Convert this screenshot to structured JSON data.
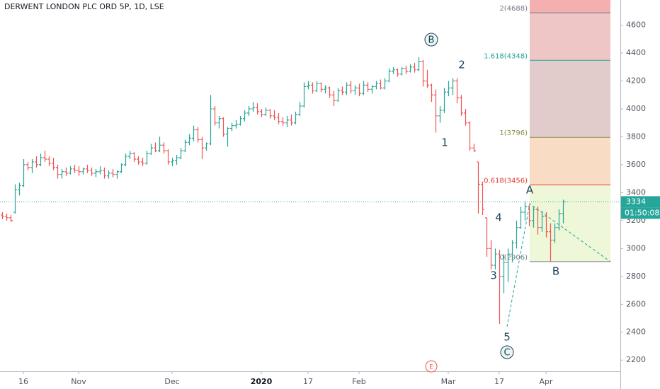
{
  "chart_data": {
    "type": "ohlc",
    "title": "DERWENT LONDON PLC ORD 5P, 1D, LSE",
    "up_color": "#26a69a",
    "down_color": "#ef5350",
    "xlim": [
      -0.5,
      145.5
    ],
    "xticks": [
      {
        "value": 5,
        "label": "16"
      },
      {
        "value": 18,
        "label": "Nov"
      },
      {
        "value": 40,
        "label": "Dec"
      },
      {
        "value": 61,
        "label": "2020"
      },
      {
        "value": 72,
        "label": "17"
      },
      {
        "value": 84,
        "label": "Feb"
      },
      {
        "value": 105,
        "label": "Mar"
      },
      {
        "value": 117,
        "label": "17"
      },
      {
        "value": 128,
        "label": "Apr"
      }
    ],
    "ylim": [
      2120,
      4780
    ],
    "yticks": [
      2200,
      2400,
      2600,
      2800,
      3000,
      3200,
      3400,
      3600,
      3800,
      4000,
      4200,
      4400,
      4600
    ],
    "grid": false,
    "last_price": 3334,
    "countdown": "01:50:08",
    "fib_levels": [
      {
        "label": "0(2906)",
        "value": 2906,
        "color": "#787b86",
        "fill": "#eef7d8"
      },
      {
        "label": "0.618(3456)",
        "value": 3456,
        "color": "#e53935",
        "fill": "#f8dcc4"
      },
      {
        "label": "1(3796)",
        "value": 3796,
        "color": "#8d8d48",
        "fill": "#e2cccb"
      },
      {
        "label": "1.618(4348)",
        "value": 4348,
        "color": "#26a69a",
        "fill": "#efc6c6"
      },
      {
        "label": "2(4688)",
        "value": 4688,
        "color": "#787b86",
        "fill": "#f4b0b0"
      }
    ],
    "wave_labels": [
      "B",
      "2",
      "1",
      "4",
      "3",
      "5",
      "C",
      "A",
      "B"
    ],
    "event_marker": "E",
    "ohlc": [
      [
        3240,
        3260,
        3210,
        3230
      ],
      [
        3230,
        3250,
        3200,
        3220
      ],
      [
        3220,
        3240,
        3190,
        3200
      ],
      [
        3260,
        3460,
        3250,
        3420
      ],
      [
        3420,
        3470,
        3380,
        3450
      ],
      [
        3450,
        3640,
        3440,
        3600
      ],
      [
        3600,
        3620,
        3560,
        3580
      ],
      [
        3580,
        3640,
        3540,
        3620
      ],
      [
        3620,
        3660,
        3580,
        3600
      ],
      [
        3600,
        3680,
        3590,
        3650
      ],
      [
        3650,
        3700,
        3620,
        3640
      ],
      [
        3640,
        3660,
        3590,
        3610
      ],
      [
        3610,
        3650,
        3560,
        3580
      ],
      [
        3580,
        3600,
        3500,
        3530
      ],
      [
        3530,
        3570,
        3500,
        3550
      ],
      [
        3550,
        3580,
        3520,
        3540
      ],
      [
        3540,
        3590,
        3530,
        3570
      ],
      [
        3570,
        3600,
        3540,
        3560
      ],
      [
        3560,
        3590,
        3520,
        3550
      ],
      [
        3550,
        3580,
        3530,
        3570
      ],
      [
        3570,
        3600,
        3540,
        3560
      ],
      [
        3560,
        3580,
        3520,
        3540
      ],
      [
        3540,
        3570,
        3510,
        3550
      ],
      [
        3550,
        3590,
        3530,
        3560
      ],
      [
        3560,
        3580,
        3500,
        3520
      ],
      [
        3520,
        3560,
        3500,
        3540
      ],
      [
        3540,
        3570,
        3510,
        3530
      ],
      [
        3530,
        3560,
        3500,
        3550
      ],
      [
        3550,
        3610,
        3540,
        3600
      ],
      [
        3600,
        3680,
        3590,
        3660
      ],
      [
        3660,
        3700,
        3640,
        3680
      ],
      [
        3680,
        3690,
        3620,
        3640
      ],
      [
        3640,
        3660,
        3600,
        3620
      ],
      [
        3620,
        3650,
        3590,
        3610
      ],
      [
        3610,
        3700,
        3600,
        3680
      ],
      [
        3680,
        3750,
        3670,
        3720
      ],
      [
        3720,
        3760,
        3690,
        3700
      ],
      [
        3700,
        3800,
        3690,
        3740
      ],
      [
        3740,
        3760,
        3680,
        3700
      ],
      [
        3700,
        3710,
        3600,
        3620
      ],
      [
        3620,
        3650,
        3590,
        3630
      ],
      [
        3630,
        3670,
        3600,
        3650
      ],
      [
        3650,
        3720,
        3640,
        3700
      ],
      [
        3700,
        3780,
        3690,
        3760
      ],
      [
        3760,
        3820,
        3740,
        3790
      ],
      [
        3790,
        3880,
        3770,
        3850
      ],
      [
        3850,
        3870,
        3760,
        3780
      ],
      [
        3780,
        3800,
        3640,
        3720
      ],
      [
        3720,
        3760,
        3700,
        3750
      ],
      [
        3750,
        4100,
        3740,
        4000
      ],
      [
        4000,
        4020,
        3880,
        3900
      ],
      [
        3900,
        3950,
        3860,
        3930
      ],
      [
        3930,
        3940,
        3800,
        3820
      ],
      [
        3820,
        3870,
        3730,
        3860
      ],
      [
        3860,
        3900,
        3840,
        3880
      ],
      [
        3880,
        3920,
        3860,
        3890
      ],
      [
        3890,
        3950,
        3880,
        3930
      ],
      [
        3930,
        3990,
        3910,
        3970
      ],
      [
        3970,
        4020,
        3950,
        4000
      ],
      [
        4000,
        4050,
        3980,
        4010
      ],
      [
        4010,
        4040,
        3960,
        3980
      ],
      [
        3980,
        4000,
        3940,
        3960
      ],
      [
        3960,
        4010,
        3950,
        3990
      ],
      [
        3990,
        4000,
        3930,
        3950
      ],
      [
        3950,
        3990,
        3920,
        3940
      ],
      [
        3940,
        3970,
        3890,
        3910
      ],
      [
        3910,
        3940,
        3880,
        3900
      ],
      [
        3900,
        3950,
        3870,
        3920
      ],
      [
        3920,
        3960,
        3880,
        3900
      ],
      [
        3900,
        3980,
        3890,
        3960
      ],
      [
        3960,
        4050,
        3950,
        4020
      ],
      [
        4020,
        4190,
        4010,
        4160
      ],
      [
        4160,
        4200,
        4140,
        4170
      ],
      [
        4170,
        4190,
        4110,
        4130
      ],
      [
        4130,
        4200,
        4120,
        4180
      ],
      [
        4180,
        4190,
        4120,
        4140
      ],
      [
        4140,
        4170,
        4110,
        4150
      ],
      [
        4150,
        4160,
        4080,
        4100
      ],
      [
        4100,
        4130,
        4020,
        4060
      ],
      [
        4060,
        4150,
        4050,
        4130
      ],
      [
        4130,
        4160,
        4100,
        4120
      ],
      [
        4120,
        4190,
        4100,
        4170
      ],
      [
        4170,
        4200,
        4110,
        4130
      ],
      [
        4130,
        4170,
        4100,
        4150
      ],
      [
        4150,
        4180,
        4090,
        4110
      ],
      [
        4110,
        4200,
        4100,
        4170
      ],
      [
        4170,
        4190,
        4120,
        4140
      ],
      [
        4140,
        4170,
        4110,
        4160
      ],
      [
        4160,
        4200,
        4140,
        4180
      ],
      [
        4180,
        4210,
        4140,
        4150
      ],
      [
        4150,
        4220,
        4140,
        4200
      ],
      [
        4200,
        4290,
        4190,
        4270
      ],
      [
        4270,
        4300,
        4250,
        4280
      ],
      [
        4280,
        4290,
        4230,
        4250
      ],
      [
        4250,
        4300,
        4240,
        4290
      ],
      [
        4290,
        4310,
        4250,
        4270
      ],
      [
        4270,
        4320,
        4260,
        4300
      ],
      [
        4300,
        4330,
        4260,
        4280
      ],
      [
        4280,
        4370,
        4270,
        4340
      ],
      [
        4340,
        4350,
        4160,
        4200
      ],
      [
        4200,
        4280,
        4150,
        4170
      ],
      [
        4170,
        4180,
        4050,
        4100
      ],
      [
        4100,
        4140,
        3830,
        3950
      ],
      [
        3950,
        4020,
        3900,
        3990
      ],
      [
        3990,
        4150,
        3970,
        4120
      ],
      [
        4120,
        4200,
        4090,
        4150
      ],
      [
        4150,
        4220,
        4100,
        4200
      ],
      [
        4200,
        4220,
        4040,
        4080
      ],
      [
        4080,
        4100,
        3950,
        3970
      ],
      [
        3970,
        4000,
        3880,
        3900
      ],
      [
        3900,
        3910,
        3700,
        3720
      ],
      [
        3720,
        3750,
        3690,
        3700
      ],
      [
        3620,
        3620,
        3250,
        3460
      ],
      [
        3460,
        3480,
        3240,
        3280
      ],
      [
        3220,
        3220,
        2940,
        3000
      ],
      [
        3000,
        3060,
        2850,
        2880
      ],
      [
        2880,
        3000,
        2850,
        2960
      ],
      [
        2960,
        2990,
        2460,
        2800
      ],
      [
        2800,
        2960,
        2680,
        2900
      ],
      [
        2900,
        3000,
        2760,
        2960
      ],
      [
        2960,
        3060,
        2900,
        3040
      ],
      [
        3040,
        3200,
        3000,
        3150
      ],
      [
        3150,
        3300,
        3140,
        3260
      ],
      [
        3260,
        3340,
        3200,
        3300
      ],
      [
        3300,
        3310,
        3160,
        3200
      ],
      [
        3200,
        3300,
        3150,
        3280
      ],
      [
        3280,
        3300,
        3100,
        3150
      ],
      [
        3150,
        3270,
        3120,
        3230
      ],
      [
        3230,
        3260,
        3080,
        3120
      ],
      [
        3120,
        3180,
        2906,
        3060
      ],
      [
        3060,
        3180,
        3040,
        3150
      ],
      [
        3150,
        3280,
        3130,
        3250
      ],
      [
        3250,
        3350,
        3180,
        3334
      ]
    ]
  }
}
